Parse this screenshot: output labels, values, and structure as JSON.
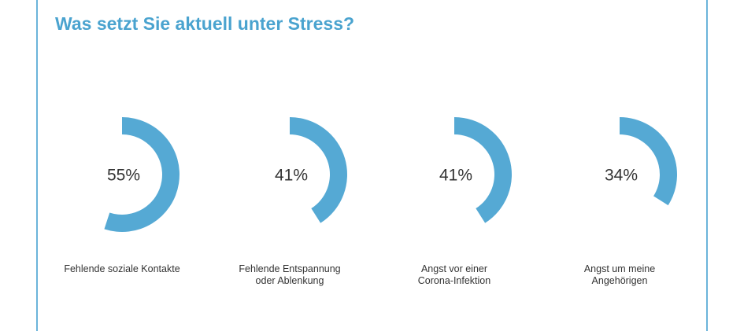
{
  "chart_data": {
    "type": "radial-progress",
    "title": "Was setzt Sie aktuell unter Stress?",
    "categories": [
      "Fehlende soziale Kontakte",
      "Fehlende Entspannung\noder Ablenkung",
      "Angst vor einer\nCorona-Infektion",
      "Angst um meine\nAngehörigen"
    ],
    "values": [
      55,
      41,
      41,
      34
    ],
    "value_labels": [
      "55%",
      "41%",
      "41%",
      "34%"
    ],
    "color": "#55a9d4",
    "ylim": [
      0,
      100
    ]
  }
}
